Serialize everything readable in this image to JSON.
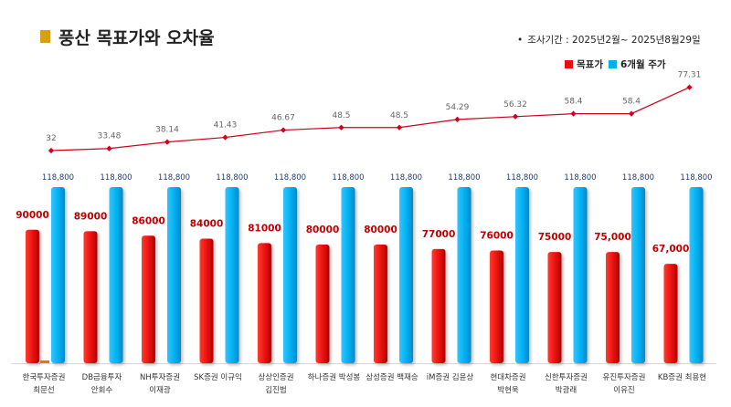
{
  "title": "풍산 목표가와 오차율",
  "period": "조사기간 : 2025년2월~ 2025년8월29일",
  "colors": {
    "accent": "#d4a017",
    "target": "#e8100e",
    "price": "#00b0f0",
    "line": "#d0021b"
  },
  "legend": {
    "target_label": "목표가",
    "price_label": "6개월 주가"
  },
  "chart_data": {
    "type": "bar",
    "title": "풍산 목표가와 오차율",
    "categories": [
      [
        "한국투자증권",
        "최문선"
      ],
      [
        "DB금융투자",
        "안회수"
      ],
      [
        "NH투자증권",
        "이재광"
      ],
      [
        "SK증권 이규익",
        ""
      ],
      [
        "상상인증권",
        "김진범"
      ],
      [
        "하나증권 박성봉",
        ""
      ],
      [
        "삼성증권 백재승",
        ""
      ],
      [
        "iM증권 김윤상",
        ""
      ],
      [
        "현대차증권",
        "박현욱"
      ],
      [
        "신한투자증권",
        "박광래"
      ],
      [
        "유진투자증권",
        "이유진"
      ],
      [
        "KB증권 최용현",
        ""
      ]
    ],
    "series": [
      {
        "name": "목표가",
        "values": [
          90000,
          89000,
          86000,
          84000,
          81000,
          80000,
          80000,
          77000,
          76000,
          75000,
          75000,
          67000
        ],
        "labels": [
          "90000",
          "89000",
          "86000",
          "84000",
          "81000",
          "80000",
          "80000",
          "77000",
          "76000",
          "75000",
          "75,000",
          "67,000"
        ]
      },
      {
        "name": "6개월 주가",
        "values": [
          118800,
          118800,
          118800,
          118800,
          118800,
          118800,
          118800,
          118800,
          118800,
          118800,
          118800,
          118800
        ],
        "labels": [
          "118,800",
          "118,800",
          "118,800",
          "118,800",
          "118,800",
          "118,800",
          "118,800",
          "118,800",
          "118,800",
          "118,800",
          "118,800",
          "118,800"
        ]
      }
    ],
    "error_rate": {
      "values": [
        32,
        33.48,
        38.14,
        41.43,
        46.67,
        48.5,
        48.5,
        54.29,
        56.32,
        58.4,
        58.4,
        77.31
      ],
      "labels": [
        "32",
        "33.48",
        "38.14",
        "41.43",
        "46.67",
        "48.5",
        "48.5",
        "54.29",
        "56.32",
        "58.4",
        "58.4",
        "77.31"
      ]
    },
    "legend_position": "top-right",
    "grid": false
  }
}
